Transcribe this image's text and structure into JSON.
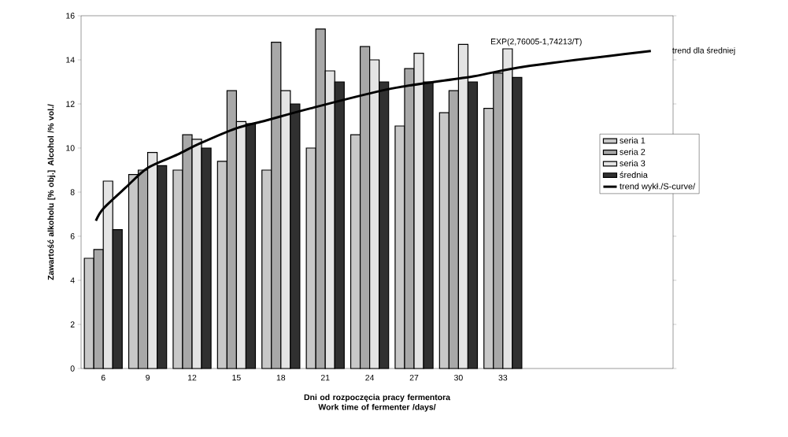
{
  "chart_data": {
    "type": "bar",
    "xlabel": "Dni od rozpoczęcia pracy fermentora Work time of fermenter /days/",
    "ylabel": "Zawartość alkoholu [% obj.] Alcohol /% vol./",
    "x": [
      6,
      9,
      12,
      15,
      18,
      21,
      24,
      27,
      30,
      33
    ],
    "xlim": [
      4.5,
      44.5
    ],
    "xticks": [
      6,
      9,
      12,
      15,
      18,
      21,
      24,
      27,
      30,
      33
    ],
    "ylim": [
      0,
      16
    ],
    "yticks": [
      0,
      2,
      4,
      6,
      8,
      10,
      12,
      14,
      16
    ],
    "legend": "right",
    "series": [
      {
        "name": "seria 1",
        "color": "#c8c8c8",
        "values": [
          5.0,
          8.8,
          9.0,
          9.4,
          9.0,
          10.0,
          10.6,
          11.0,
          11.6,
          11.8
        ]
      },
      {
        "name": "seria 2",
        "color": "#a8a8a8",
        "values": [
          5.4,
          9.0,
          10.6,
          12.6,
          14.8,
          15.4,
          14.6,
          13.6,
          12.6,
          13.4
        ]
      },
      {
        "name": "seria 3",
        "color": "#e4e4e4",
        "values": [
          8.5,
          9.8,
          10.4,
          11.2,
          12.6,
          13.5,
          14.0,
          14.3,
          14.7,
          14.5
        ]
      },
      {
        "name": "średnia",
        "color": "#303030",
        "values": [
          6.3,
          9.2,
          10.0,
          11.1,
          12.0,
          13.0,
          13.0,
          13.0,
          13.0,
          13.2
        ]
      },
      {
        "name": "trend wykł./S-curve/",
        "color": "#000000",
        "type": "line",
        "x": [
          5.5,
          6,
          7.5,
          9,
          11,
          12.5,
          15,
          17,
          20,
          25.5,
          31,
          34.5,
          43
        ],
        "values": [
          6.7,
          7.25,
          8.2,
          9.1,
          9.7,
          10.2,
          10.9,
          11.25,
          11.8,
          12.7,
          13.25,
          13.7,
          14.4
        ]
      }
    ],
    "annotations": [
      "EXP(2,76005-1,74213/T)",
      "trend dla średniej"
    ]
  }
}
